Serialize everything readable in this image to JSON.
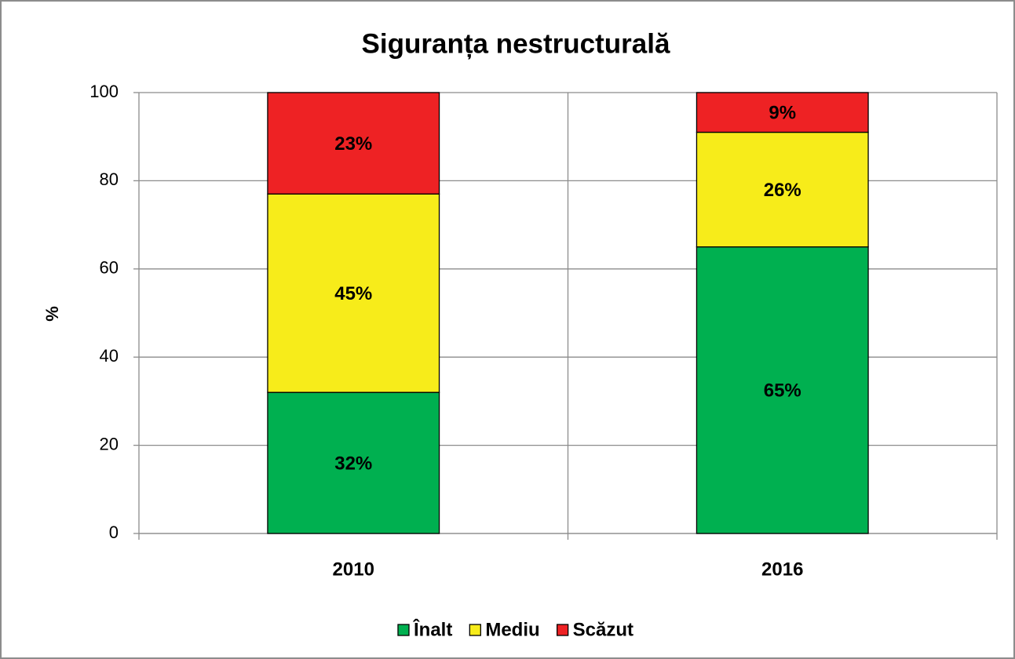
{
  "chart_data": {
    "type": "stacked_bar",
    "title": "Siguranța nestructurală",
    "y_label": "%",
    "categories": [
      "2010",
      "2016"
    ],
    "series": [
      {
        "name": "Înalt",
        "color": "#00b050",
        "values": [
          32,
          65
        ],
        "value_labels": [
          "32%",
          "65%"
        ]
      },
      {
        "name": "Mediu",
        "color": "#f7ec1a",
        "values": [
          45,
          26
        ],
        "value_labels": [
          "45%",
          "26%"
        ]
      },
      {
        "name": "Scăzut",
        "color": "#ee2224",
        "values": [
          23,
          9
        ],
        "value_labels": [
          "23%",
          "9%"
        ]
      }
    ],
    "ylim": [
      0,
      100
    ],
    "yticks": [
      0,
      20,
      40,
      60,
      80,
      100
    ],
    "grid": true,
    "legend": "bottom"
  }
}
